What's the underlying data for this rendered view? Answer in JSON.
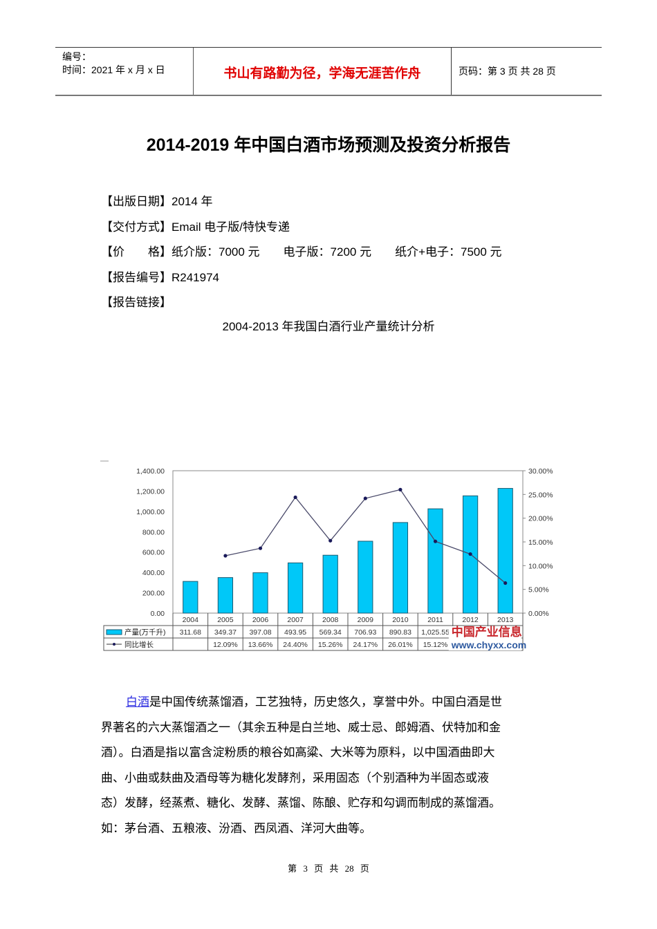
{
  "header": {
    "number_label": "编号：",
    "date_label": "时间：2021 年 x 月 x 日",
    "motto": "书山有路勤为径，学海无涯苦作舟",
    "page_info": "页码：第 3 页  共 28 页"
  },
  "document": {
    "title": "2014-2019 年中国白酒市场预测及投资分析报告",
    "meta": [
      {
        "label": "【出版日期】",
        "value": "2014 年"
      },
      {
        "label": "【交付方式】",
        "value": "Email 电子版/特快专递"
      },
      {
        "label": "【价　　格】",
        "value": "纸介版：7000 元　　电子版：7200 元　　纸介+电子：7500 元"
      },
      {
        "label": "【报告编号】",
        "value": "R241974"
      },
      {
        "label": "【报告链接】",
        "value": ""
      }
    ],
    "chart_caption": "2004-2013 年我国白酒行业产量统计分析",
    "paragraph_link": "白酒",
    "paragraph_lines": [
      "是中国传统蒸馏酒，工艺独特，历史悠久，享誉中外。中国白酒是世",
      "界著名的六大蒸馏酒之一（其余五种是白兰地、威士忌、郎姆酒、伏特加和金",
      "酒）。白酒是指以富含淀粉质的粮谷如高粱、大米等为原料，以中国酒曲即大",
      "曲、小曲或麸曲及酒母等为糖化发酵剂，采用固态（个别酒种为半固态或液",
      "态）发酵，经蒸煮、糖化、发酵、蒸馏、陈酿、贮存和勾调而制成的蒸馏酒。",
      "如：茅台酒、五粮液、汾酒、西凤酒、洋河大曲等。"
    ]
  },
  "footer": {
    "page_text": "第 3 页 共 28 页"
  },
  "chart_data": {
    "type": "bar",
    "title": "2004-2013 年我国白酒行业产量统计分析",
    "categories": [
      "2004",
      "2005",
      "2006",
      "2007",
      "2008",
      "2009",
      "2010",
      "2011",
      "2012",
      "2013"
    ],
    "series": [
      {
        "name": "产量(万千升)",
        "type": "bar",
        "axis": "left",
        "color": "#00c8f8",
        "values": [
          311.68,
          349.37,
          397.08,
          493.95,
          569.34,
          706.93,
          890.83,
          1025.55,
          1153.16,
          1226.2
        ],
        "labels": [
          "311.68",
          "349.37",
          "397.08",
          "493.95",
          "569.34",
          "706.93",
          "890.83",
          "1,025.55",
          "",
          ""
        ]
      },
      {
        "name": "同比增长",
        "type": "line",
        "axis": "right",
        "color": "#1a1a5a",
        "values": [
          null,
          12.09,
          13.66,
          24.4,
          15.26,
          24.17,
          26.01,
          15.12,
          12.44,
          6.33
        ],
        "labels": [
          "",
          "12.09%",
          "13.66%",
          "24.40%",
          "15.26%",
          "24.17%",
          "26.01%",
          "15.12%",
          "",
          ""
        ]
      }
    ],
    "ylim": [
      0,
      1400
    ],
    "yticks": [
      "0.00",
      "200.00",
      "400.00",
      "600.00",
      "800.00",
      "1,000.00",
      "1,200.00",
      "1,400.00"
    ],
    "y2lim": [
      0,
      30
    ],
    "y2ticks": [
      "0.00%",
      "5.00%",
      "10.00%",
      "15.00%",
      "20.00%",
      "25.00%",
      "30.00%"
    ],
    "xlabel": "",
    "ylabel": "",
    "grid": false,
    "legend_position": "data-table",
    "watermark": {
      "line1": "中国产业信息",
      "line2": "www.chyxx.com"
    }
  }
}
